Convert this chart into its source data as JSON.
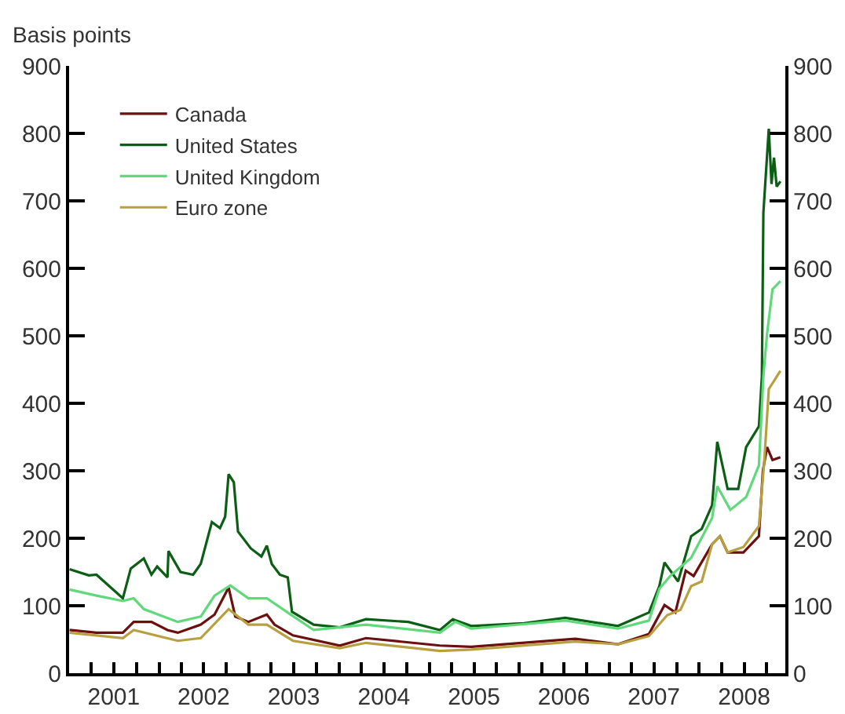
{
  "chart_data": {
    "type": "line",
    "ylabel": "Basis points",
    "xlim": [
      "2001-01-01",
      "2008-12-15"
    ],
    "xticks": [
      {
        "value": "2001-01-01",
        "label": null
      },
      {
        "value": "2001-04-01",
        "label": null
      },
      {
        "value": "2001-07-01",
        "label": "2001"
      },
      {
        "value": "2001-10-01",
        "label": null
      },
      {
        "value": "2002-01-01",
        "label": null
      },
      {
        "value": "2002-04-01",
        "label": null
      },
      {
        "value": "2002-07-01",
        "label": "2002"
      },
      {
        "value": "2002-10-01",
        "label": null
      },
      {
        "value": "2003-01-01",
        "label": null
      },
      {
        "value": "2003-04-01",
        "label": null
      },
      {
        "value": "2003-07-01",
        "label": "2003"
      },
      {
        "value": "2003-10-01",
        "label": null
      },
      {
        "value": "2004-01-01",
        "label": null
      },
      {
        "value": "2004-04-01",
        "label": null
      },
      {
        "value": "2004-07-01",
        "label": "2004"
      },
      {
        "value": "2004-10-01",
        "label": null
      },
      {
        "value": "2005-01-01",
        "label": null
      },
      {
        "value": "2005-04-01",
        "label": null
      },
      {
        "value": "2005-07-01",
        "label": "2005"
      },
      {
        "value": "2005-10-01",
        "label": null
      },
      {
        "value": "2006-01-01",
        "label": null
      },
      {
        "value": "2006-04-01",
        "label": null
      },
      {
        "value": "2006-07-01",
        "label": "2006"
      },
      {
        "value": "2006-10-01",
        "label": null
      },
      {
        "value": "2007-01-01",
        "label": null
      },
      {
        "value": "2007-04-01",
        "label": null
      },
      {
        "value": "2007-07-01",
        "label": "2007"
      },
      {
        "value": "2007-10-01",
        "label": null
      },
      {
        "value": "2008-01-01",
        "label": null
      },
      {
        "value": "2008-04-01",
        "label": null
      },
      {
        "value": "2008-07-01",
        "label": "2008"
      },
      {
        "value": "2008-10-01",
        "label": null
      }
    ],
    "ylim": [
      0,
      900
    ],
    "yticks": [
      0,
      100,
      200,
      300,
      400,
      500,
      600,
      700,
      800,
      900
    ],
    "y2lim": [
      0,
      900
    ],
    "y2ticks": [
      0,
      100,
      200,
      300,
      400,
      500,
      600,
      700,
      800,
      900
    ],
    "grid": false,
    "legend": "top left",
    "line_style": "solid",
    "marker": "none",
    "series": [
      {
        "name": "Canada",
        "color": "#6b0f0f",
        "x": [
          "2001-01-03",
          "2001-04-22",
          "2001-08-07",
          "2001-09-20",
          "2001-12-01",
          "2002-02-04",
          "2002-03-18",
          "2002-06-19",
          "2002-08-14",
          "2002-10-10",
          "2002-11-06",
          "2002-12-29",
          "2003-03-14",
          "2003-04-14",
          "2003-06-28",
          "2004-01-04",
          "2004-04-19",
          "2005-02-13",
          "2005-06-20",
          "2006-08-16",
          "2007-02-05",
          "2007-06-11",
          "2007-08-13",
          "2007-09-26",
          "2007-11-07",
          "2007-12-09",
          "2008-02-22",
          "2008-03-25",
          "2008-04-25",
          "2008-06-28",
          "2008-08-30",
          "2008-09-15",
          "2008-10-02",
          "2008-10-24",
          "2008-11-25"
        ],
        "values": [
          64,
          60,
          60,
          76,
          76,
          64,
          60,
          72,
          87,
          127,
          84,
          76,
          87,
          72,
          56,
          41,
          52,
          41,
          39,
          51,
          43,
          58,
          101,
          90,
          152,
          144,
          191,
          203,
          179,
          179,
          203,
          300,
          335,
          316,
          320
        ]
      },
      {
        "name": "United States",
        "color": "#0b5e14",
        "x": [
          "2001-01-03",
          "2001-03-22",
          "2001-04-22",
          "2001-08-07",
          "2001-09-08",
          "2001-10-31",
          "2001-12-01",
          "2001-12-24",
          "2002-02-04",
          "2002-02-08",
          "2002-03-29",
          "2002-05-19",
          "2002-06-19",
          "2002-08-03",
          "2002-09-05",
          "2002-09-26",
          "2002-10-10",
          "2002-10-31",
          "2002-11-17",
          "2003-01-08",
          "2003-02-20",
          "2003-03-14",
          "2003-04-03",
          "2003-05-06",
          "2003-06-07",
          "2003-06-24",
          "2003-09-20",
          "2004-01-04",
          "2004-04-19",
          "2004-10-08",
          "2005-02-13",
          "2005-04-06",
          "2005-06-20",
          "2006-01-20",
          "2006-07-06",
          "2007-02-05",
          "2007-06-11",
          "2007-07-23",
          "2007-08-13",
          "2007-10-07",
          "2007-11-29",
          "2008-01-11",
          "2008-02-22",
          "2008-03-14",
          "2008-04-25",
          "2008-06-07",
          "2008-07-09",
          "2008-08-30",
          "2008-09-11",
          "2008-09-17",
          "2008-10-09",
          "2008-10-20",
          "2008-10-30",
          "2008-11-10",
          "2008-11-25"
        ],
        "values": [
          154,
          145,
          146,
          111,
          155,
          170,
          146,
          158,
          142,
          181,
          150,
          146,
          162,
          224,
          215,
          232,
          295,
          283,
          210,
          185,
          173,
          189,
          162,
          146,
          142,
          91,
          72,
          68,
          80,
          76,
          64,
          80,
          70,
          74,
          82,
          70,
          90,
          129,
          164,
          136,
          203,
          214,
          249,
          343,
          273,
          273,
          335,
          366,
          440,
          682,
          807,
          725,
          764,
          721,
          729
        ]
      },
      {
        "name": "United Kingdom",
        "color": "#5fd97a",
        "x": [
          "2001-01-03",
          "2001-04-22",
          "2001-08-07",
          "2001-09-20",
          "2001-10-31",
          "2002-03-18",
          "2002-06-19",
          "2002-08-14",
          "2002-10-17",
          "2002-12-29",
          "2003-03-14",
          "2003-06-18",
          "2003-09-20",
          "2004-04-19",
          "2005-02-13",
          "2005-04-16",
          "2005-06-20",
          "2006-07-06",
          "2007-02-05",
          "2007-06-11",
          "2007-07-23",
          "2007-09-05",
          "2007-11-29",
          "2008-02-22",
          "2008-03-14",
          "2008-05-06",
          "2008-07-09",
          "2008-08-30",
          "2008-09-17",
          "2008-10-02",
          "2008-10-24",
          "2008-11-25"
        ],
        "values": [
          124,
          115,
          107,
          111,
          95,
          76,
          84,
          115,
          130,
          111,
          111,
          87,
          64,
          72,
          60,
          76,
          66,
          78,
          66,
          78,
          125,
          144,
          171,
          230,
          277,
          242,
          261,
          308,
          440,
          503,
          569,
          581
        ]
      },
      {
        "name": "Euro zone",
        "color": "#b8a040",
        "x": [
          "2001-01-03",
          "2001-08-07",
          "2001-09-20",
          "2002-03-18",
          "2002-06-19",
          "2002-10-10",
          "2002-12-29",
          "2003-03-14",
          "2003-06-28",
          "2004-01-04",
          "2004-04-19",
          "2005-02-13",
          "2005-06-20",
          "2006-08-16",
          "2007-02-05",
          "2007-06-11",
          "2007-08-24",
          "2007-10-17",
          "2007-11-29",
          "2008-01-11",
          "2008-02-22",
          "2008-03-25",
          "2008-04-25",
          "2008-06-28",
          "2008-08-30",
          "2008-09-21",
          "2008-10-09",
          "2008-11-25"
        ],
        "values": [
          60,
          52,
          64,
          48,
          52,
          95,
          72,
          72,
          48,
          37,
          45,
          33,
          35,
          47,
          43,
          55,
          86,
          94,
          129,
          136,
          191,
          203,
          179,
          187,
          218,
          316,
          421,
          448
        ]
      }
    ]
  }
}
